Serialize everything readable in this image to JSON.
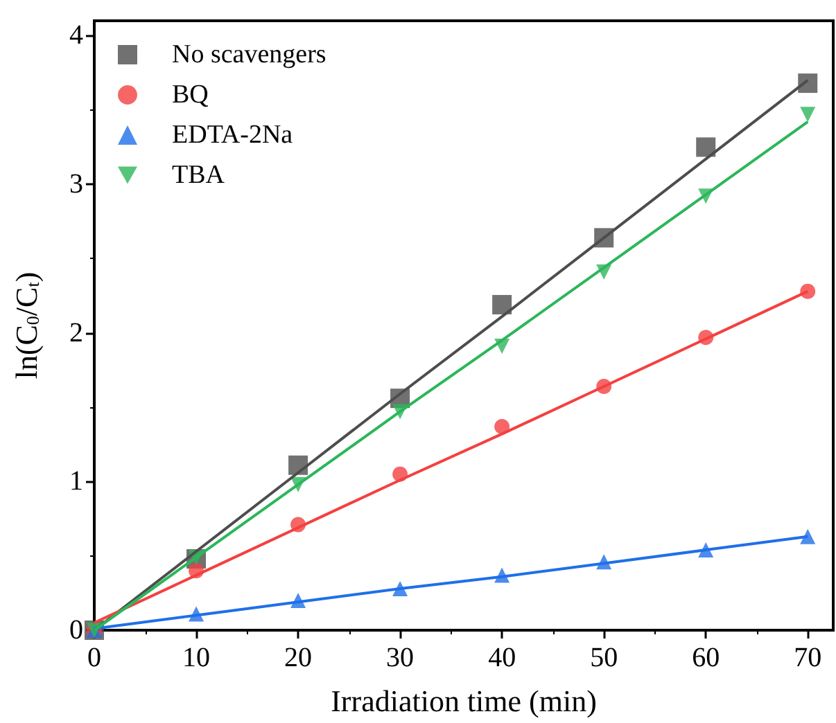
{
  "chart_data": {
    "type": "scatter",
    "xlabel": "Irradiation time (min)",
    "ylabel": "ln(C$_{0}$/C$_{t}$)",
    "x": [
      0,
      10,
      20,
      30,
      40,
      50,
      60,
      70
    ],
    "series": [
      {
        "name": "No scavengers",
        "color": "#4d4d4d",
        "marker": "square",
        "values": [
          0,
          0.48,
          1.11,
          1.56,
          2.19,
          2.64,
          3.25,
          3.68
        ]
      },
      {
        "name": "BQ",
        "color": "#f44040",
        "marker": "circle",
        "values": [
          0,
          0.4,
          0.71,
          1.05,
          1.37,
          1.64,
          1.97,
          2.28
        ]
      },
      {
        "name": "EDTA-2Na",
        "color": "#1f6fe8",
        "marker": "triangle",
        "values": [
          0,
          0.11,
          0.2,
          0.28,
          0.37,
          0.46,
          0.54,
          0.63
        ]
      },
      {
        "name": "TBA",
        "color": "#2cb65a",
        "marker": "triangle-down",
        "values": [
          0,
          0.49,
          0.98,
          1.47,
          1.91,
          2.41,
          2.92,
          3.47
        ]
      },
      {
        "type": "line",
        "color": "#4d4d4d",
        "values": [
          0,
          0.53,
          1.06,
          1.59,
          2.11,
          2.64,
          3.17,
          3.7
        ]
      },
      {
        "type": "line",
        "color": "#f44040",
        "values": [
          0.05,
          0.37,
          0.69,
          1.01,
          1.32,
          1.64,
          1.96,
          2.28
        ]
      },
      {
        "type": "line",
        "color": "#1f6fe8",
        "values": [
          0.01,
          0.1,
          0.19,
          0.28,
          0.36,
          0.45,
          0.54,
          0.63
        ]
      },
      {
        "type": "line",
        "color": "#2cb65a",
        "values": [
          0,
          0.49,
          0.98,
          1.47,
          1.95,
          2.44,
          2.93,
          3.42
        ]
      }
    ],
    "xlim": [
      0,
      72.5
    ],
    "xticks": [
      0,
      10,
      20,
      30,
      40,
      50,
      60,
      70
    ],
    "ylim": [
      0,
      4.1
    ],
    "yticks": [
      0,
      1,
      2,
      3,
      4
    ],
    "legend": "top left",
    "grid": false
  }
}
